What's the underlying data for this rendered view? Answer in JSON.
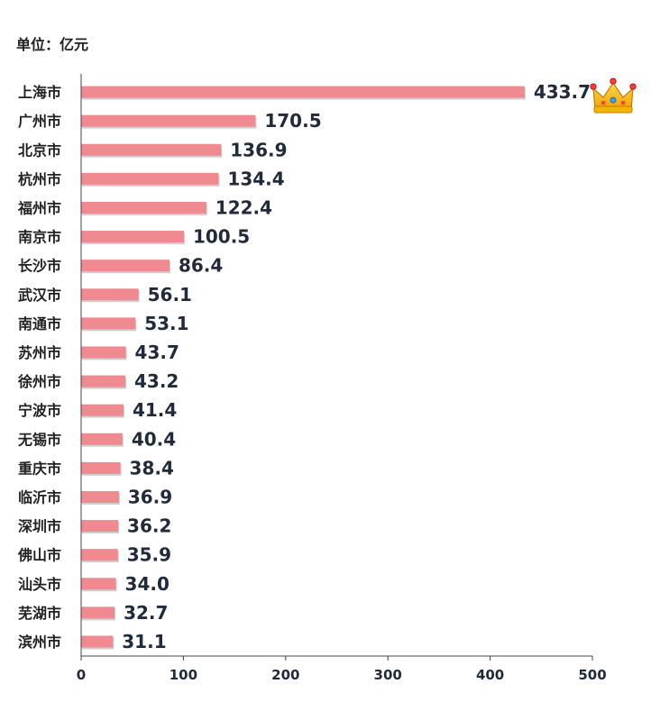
{
  "unit_label": "单位：亿元",
  "chart_data": {
    "type": "bar",
    "orientation": "horizontal",
    "title": "",
    "xlabel": "",
    "ylabel": "",
    "xlim": [
      0,
      500
    ],
    "x_ticks": [
      0,
      100,
      200,
      300,
      400,
      500
    ],
    "grid": false,
    "bar_color": "#ee8a90",
    "top_badge_icon": "crown-icon",
    "categories": [
      "上海市",
      "广州市",
      "北京市",
      "杭州市",
      "福州市",
      "南京市",
      "长沙市",
      "武汉市",
      "南通市",
      "苏州市",
      "徐州市",
      "宁波市",
      "无锡市",
      "重庆市",
      "临沂市",
      "深圳市",
      "佛山市",
      "汕头市",
      "芜湖市",
      "滨州市"
    ],
    "values": [
      433.7,
      170.5,
      136.9,
      134.4,
      122.4,
      100.5,
      86.4,
      56.1,
      53.1,
      43.7,
      43.2,
      41.4,
      40.4,
      38.4,
      36.9,
      36.2,
      35.9,
      34.0,
      32.7,
      31.1
    ],
    "value_labels": [
      "433.7",
      "170.5",
      "136.9",
      "134.4",
      "122.4",
      "100.5",
      "86.4",
      "56.1",
      "53.1",
      "43.7",
      "43.2",
      "41.4",
      "40.4",
      "38.4",
      "36.9",
      "36.2",
      "35.9",
      "34.0",
      "32.7",
      "31.1"
    ]
  }
}
